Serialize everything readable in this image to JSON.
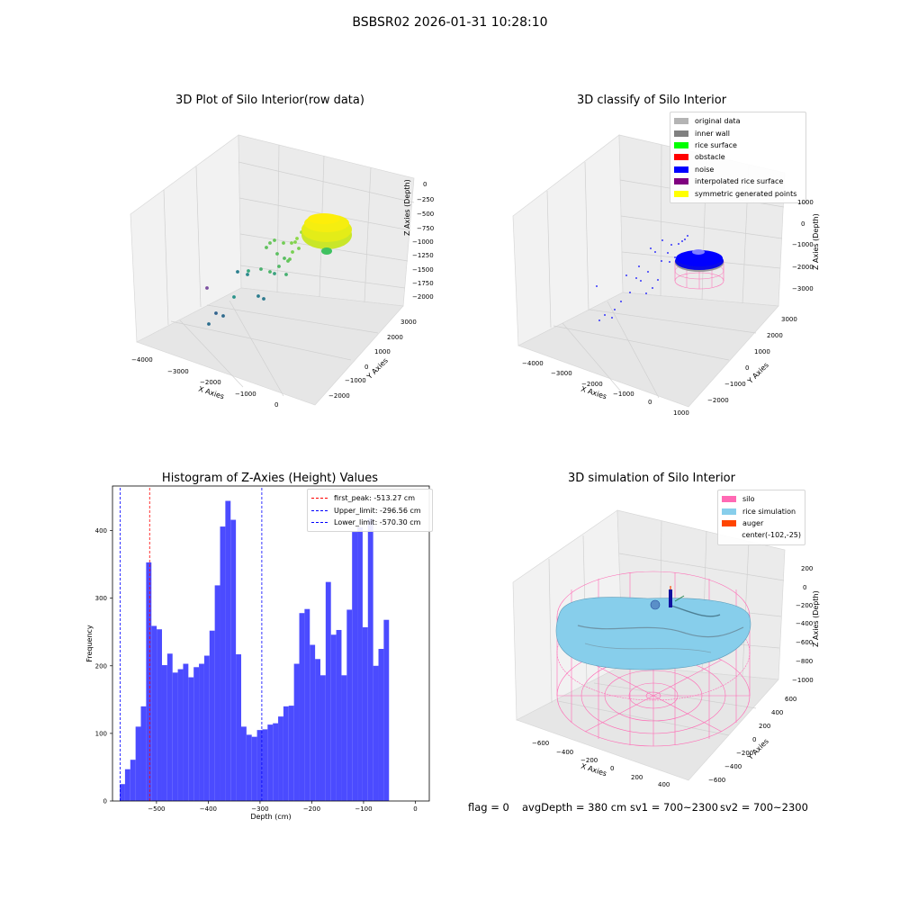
{
  "suptitle": "BSBSR02 2026-01-31 10:28:10",
  "footer": {
    "flag": "flag = 0",
    "avg_depth": "avgDepth = 380 cm",
    "sv1": "sv1 = 700~2300",
    "sv2": "sv2 = 700~2300"
  },
  "chart_data": [
    {
      "type": "scatter",
      "projection": "3d",
      "title": "3D Plot of Silo Interior(row data)",
      "xlabel": "X Axies",
      "ylabel": "Y Axies",
      "zlabel": "Z Axies (Depth)",
      "xticks": [
        "−4000",
        "−3000",
        "−2000",
        "−1000",
        "0"
      ],
      "yticks": [
        "−2000",
        "−1000",
        "0",
        "1000",
        "2000",
        "3000"
      ],
      "zticks": [
        "0",
        "−250",
        "−500",
        "−750",
        "−1000",
        "−1250",
        "−1500",
        "−1750",
        "−2000"
      ],
      "grid": true,
      "colormap": "viridis (by depth)"
    },
    {
      "type": "scatter",
      "projection": "3d",
      "title": "3D classify of Silo Interior",
      "xlabel": "X Axies",
      "ylabel": "Y Axies",
      "zlabel": "Z Axies (Depth)",
      "xticks": [
        "−4000",
        "−3000",
        "−2000",
        "−1000",
        "0",
        "1000"
      ],
      "yticks": [
        "−2000",
        "−1000",
        "0",
        "1000",
        "2000",
        "3000"
      ],
      "zticks": [
        "1000",
        "0",
        "−1000",
        "−2000",
        "−3000"
      ],
      "grid": true,
      "legend_position": "top-right",
      "legend": [
        {
          "label": "original data",
          "color": "#b4b4b4"
        },
        {
          "label": "inner wall",
          "color": "#808080"
        },
        {
          "label": "rice surface",
          "color": "#00ff00"
        },
        {
          "label": "obstacle",
          "color": "#ff0000"
        },
        {
          "label": "noise",
          "color": "#0000ff"
        },
        {
          "label": "interpolated rice surface",
          "color": "#800080"
        },
        {
          "label": "symmetric generated points",
          "color": "#ffff00"
        }
      ]
    },
    {
      "type": "bar",
      "title": "Histogram of Z-Axies (Height) Values",
      "xlabel": "Depth (cm)",
      "ylabel": "Frequency",
      "xlim": [
        -585,
        27
      ],
      "ylim": [
        0,
        466
      ],
      "xticks": [
        -500,
        -400,
        -300,
        -200,
        -100,
        0
      ],
      "yticks": [
        0,
        100,
        200,
        300,
        400
      ],
      "bar_color": "#4b4bff",
      "bin_edges_start": -571,
      "bin_width": 10.2,
      "values": [
        25,
        47,
        61,
        110,
        140,
        353,
        259,
        254,
        201,
        218,
        190,
        195,
        203,
        183,
        198,
        203,
        215,
        252,
        319,
        406,
        444,
        416,
        217,
        110,
        98,
        95,
        105,
        106,
        113,
        115,
        125,
        140,
        141,
        203,
        278,
        284,
        231,
        210,
        186,
        324,
        246,
        253,
        186,
        283,
        398,
        405,
        257,
        418,
        200,
        225,
        268
      ],
      "vlines": [
        {
          "label": "first_peak: -513.27 cm",
          "x": -513.27,
          "color": "#ff0000"
        },
        {
          "label": "Upper_limit: -296.56 cm",
          "x": -296.56,
          "color": "#0000ff"
        },
        {
          "label": "Lower_limit: -570.30 cm",
          "x": -570.3,
          "color": "#0000ff"
        }
      ],
      "legend_position": "top-right"
    },
    {
      "type": "surface",
      "projection": "3d",
      "title": "3D simulation of Silo Interior",
      "xlabel": "X Axies",
      "ylabel": "Y Axies",
      "zlabel": "Z Axies (Depth)",
      "xticks": [
        "−600",
        "−400",
        "−200",
        "0",
        "200",
        "400"
      ],
      "yticks": [
        "−600",
        "−400",
        "−200",
        "0",
        "200",
        "400",
        "600"
      ],
      "zticks": [
        "200",
        "0",
        "−200",
        "−400",
        "−600",
        "−800",
        "−1000"
      ],
      "grid": true,
      "legend_position": "top-right",
      "legend": [
        {
          "label": "silo",
          "color": "#ff69b4"
        },
        {
          "label": "rice simulation",
          "color": "#87ceeb"
        },
        {
          "label": "auger",
          "color": "#ff4500"
        },
        {
          "label": "center(-102,-25)",
          "color": ""
        }
      ]
    }
  ]
}
